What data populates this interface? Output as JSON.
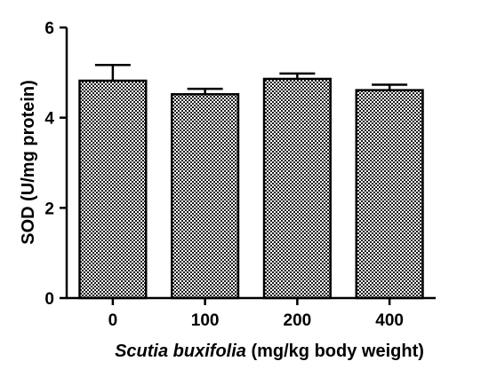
{
  "chart_data": {
    "type": "bar",
    "categories": [
      "0",
      "100",
      "200",
      "400"
    ],
    "values": [
      4.82,
      4.52,
      4.86,
      4.61
    ],
    "errors": [
      0.35,
      0.12,
      0.12,
      0.12
    ],
    "ylim": [
      0,
      6
    ],
    "yticks": [
      "0",
      "2",
      "4",
      "6"
    ],
    "ylabel": "SOD (U/mg protein)",
    "xlabel_italic": "Scutia buxifolia",
    "xlabel_rest": " (mg/kg body weight)",
    "grid": false,
    "legend": "none",
    "bar_pattern": "checkerboard",
    "bar_color": "#000000",
    "background": "#ffffff"
  }
}
